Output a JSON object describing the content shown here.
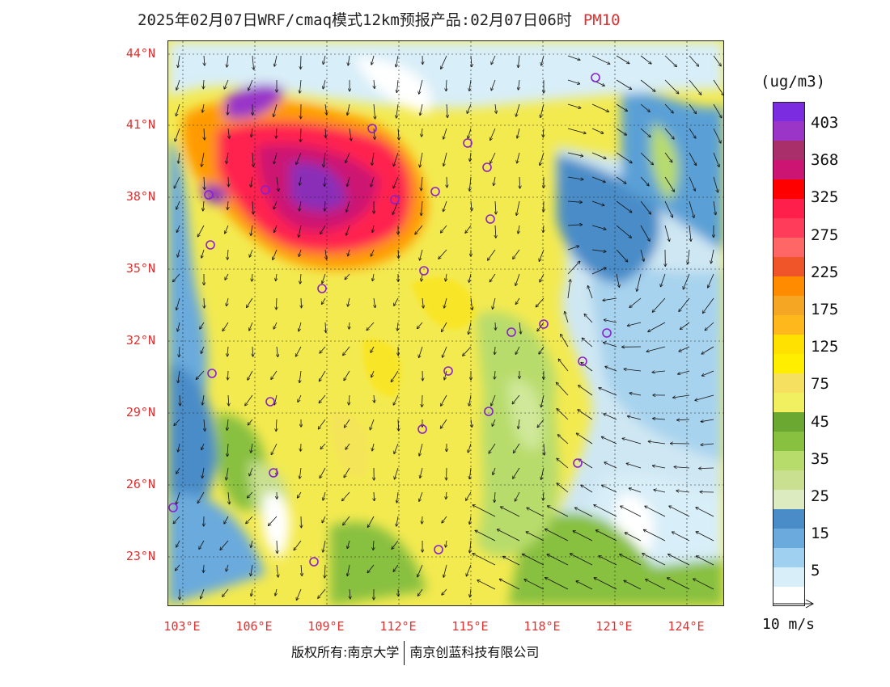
{
  "title": {
    "main": "2025年02月07日WRF/cmaq模式12km预报产品:02月07日06时",
    "pollutant": "PM10"
  },
  "map": {
    "lat_labels": [
      "44°N",
      "41°N",
      "38°N",
      "35°N",
      "32°N",
      "29°N",
      "26°N",
      "23°N"
    ],
    "lon_labels": [
      "103°E",
      "106°E",
      "109°E",
      "112°E",
      "115°E",
      "118°E",
      "121°E",
      "124°E"
    ]
  },
  "legend": {
    "units": "(ug/m3)",
    "colors": [
      "#7b2be0",
      "#9a35c8",
      "#a82f6a",
      "#cc1472",
      "#ff0000",
      "#ff1f4a",
      "#ff3c5a",
      "#ff6666",
      "#f0552a",
      "#ff8c00",
      "#f5a623",
      "#ffb81c",
      "#ffe100",
      "#ffee00",
      "#f5e060",
      "#f0f060",
      "#6aa832",
      "#88c040",
      "#b8dc6c",
      "#c8e090",
      "#dcecc0",
      "#4a8cc8",
      "#6aaadc",
      "#a0d0f0",
      "#d8eef8",
      "#ffffff"
    ],
    "labels": [
      "403",
      "368",
      "325",
      "275",
      "225",
      "175",
      "125",
      "75",
      "45",
      "35",
      "25",
      "15",
      "5"
    ],
    "ref_vector_label": "10 m/s"
  },
  "footer": {
    "copyright": "版权所有:南京大学",
    "company": "南京创蓝科技有限公司"
  }
}
